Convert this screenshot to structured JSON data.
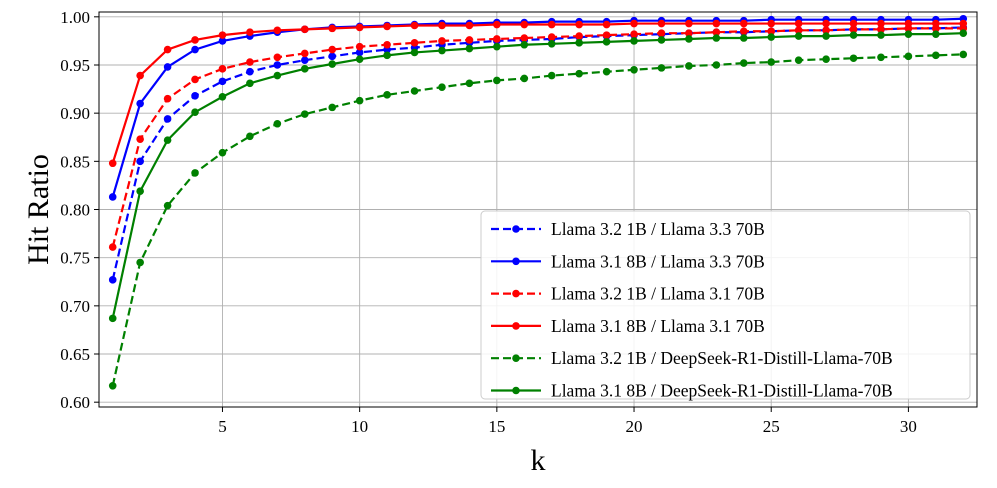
{
  "chart_data": {
    "type": "line",
    "title": "",
    "xlabel": "k",
    "ylabel": "Hit Ratio",
    "xlim": [
      0.5,
      32.5
    ],
    "ylim": [
      0.595,
      1.005
    ],
    "xticks": [
      5,
      10,
      15,
      20,
      25,
      30
    ],
    "xtick_labels": [
      "5",
      "10",
      "15",
      "20",
      "25",
      "30"
    ],
    "yticks": [
      0.6,
      0.65,
      0.7,
      0.75,
      0.8,
      0.85,
      0.9,
      0.95,
      1.0
    ],
    "ytick_labels": [
      "0.60",
      "0.65",
      "0.70",
      "0.75",
      "0.80",
      "0.85",
      "0.90",
      "0.95",
      "1.00"
    ],
    "grid": true,
    "legend_position": "lower-right",
    "x": [
      1,
      2,
      3,
      4,
      5,
      6,
      7,
      8,
      9,
      10,
      11,
      12,
      13,
      14,
      15,
      16,
      17,
      18,
      19,
      20,
      21,
      22,
      23,
      24,
      25,
      26,
      27,
      28,
      29,
      30,
      31,
      32
    ],
    "series": [
      {
        "name": "Llama 3.2 1B / Llama 3.3 70B",
        "color": "#0000ff",
        "linestyle": "dashed",
        "values": [
          0.727,
          0.85,
          0.894,
          0.918,
          0.933,
          0.943,
          0.95,
          0.955,
          0.959,
          0.963,
          0.966,
          0.968,
          0.971,
          0.973,
          0.975,
          0.976,
          0.977,
          0.979,
          0.98,
          0.981,
          0.982,
          0.983,
          0.984,
          0.984,
          0.985,
          0.986,
          0.986,
          0.987,
          0.987,
          0.988,
          0.988,
          0.989
        ]
      },
      {
        "name": "Llama 3.1 8B / Llama 3.3 70B",
        "color": "#0000ff",
        "linestyle": "solid",
        "values": [
          0.813,
          0.91,
          0.948,
          0.966,
          0.975,
          0.98,
          0.984,
          0.987,
          0.989,
          0.99,
          0.991,
          0.992,
          0.993,
          0.993,
          0.994,
          0.994,
          0.995,
          0.995,
          0.995,
          0.996,
          0.996,
          0.996,
          0.996,
          0.996,
          0.997,
          0.997,
          0.997,
          0.997,
          0.997,
          0.997,
          0.997,
          0.998
        ]
      },
      {
        "name": "Llama 3.2 1B / Llama 3.1 70B",
        "color": "#ff0000",
        "linestyle": "dashed",
        "values": [
          0.761,
          0.873,
          0.915,
          0.935,
          0.946,
          0.953,
          0.958,
          0.962,
          0.966,
          0.969,
          0.971,
          0.973,
          0.975,
          0.976,
          0.977,
          0.978,
          0.979,
          0.98,
          0.981,
          0.982,
          0.983,
          0.983,
          0.984,
          0.985,
          0.985,
          0.986,
          0.986,
          0.987,
          0.987,
          0.988,
          0.988,
          0.988
        ]
      },
      {
        "name": "Llama 3.1 8B / Llama 3.1 70B",
        "color": "#ff0000",
        "linestyle": "solid",
        "values": [
          0.848,
          0.939,
          0.966,
          0.976,
          0.981,
          0.984,
          0.986,
          0.987,
          0.988,
          0.989,
          0.99,
          0.991,
          0.991,
          0.991,
          0.992,
          0.992,
          0.992,
          0.992,
          0.992,
          0.993,
          0.993,
          0.993,
          0.993,
          0.993,
          0.993,
          0.993,
          0.993,
          0.993,
          0.993,
          0.993,
          0.993,
          0.993
        ]
      },
      {
        "name": "Llama 3.2 1B / DeepSeek-R1-Distill-Llama-70B",
        "color": "#008000",
        "linestyle": "dashed",
        "values": [
          0.617,
          0.745,
          0.804,
          0.838,
          0.859,
          0.876,
          0.889,
          0.899,
          0.906,
          0.913,
          0.919,
          0.923,
          0.927,
          0.931,
          0.934,
          0.936,
          0.939,
          0.941,
          0.943,
          0.945,
          0.947,
          0.949,
          0.95,
          0.952,
          0.953,
          0.955,
          0.956,
          0.957,
          0.958,
          0.959,
          0.96,
          0.961
        ]
      },
      {
        "name": "Llama 3.1 8B / DeepSeek-R1-Distill-Llama-70B",
        "color": "#008000",
        "linestyle": "solid",
        "values": [
          0.687,
          0.819,
          0.872,
          0.901,
          0.917,
          0.931,
          0.939,
          0.946,
          0.951,
          0.956,
          0.96,
          0.963,
          0.965,
          0.967,
          0.969,
          0.971,
          0.972,
          0.973,
          0.974,
          0.975,
          0.976,
          0.977,
          0.978,
          0.978,
          0.979,
          0.98,
          0.98,
          0.981,
          0.981,
          0.982,
          0.982,
          0.983
        ]
      }
    ]
  }
}
